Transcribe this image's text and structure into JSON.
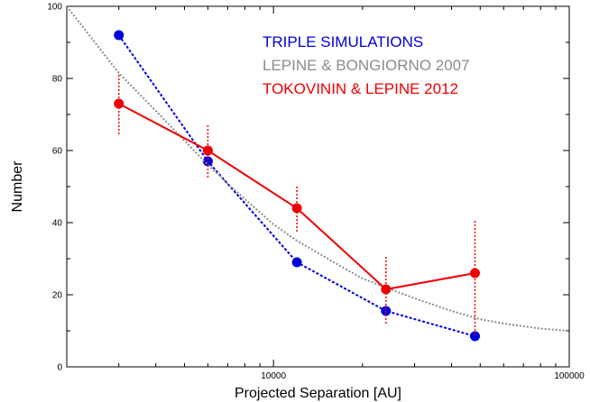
{
  "chart_data": {
    "type": "line",
    "title": "",
    "xlabel": "Projected Separation [AU]",
    "ylabel": "Number",
    "xscale": "log",
    "xlim": [
      2000,
      100000
    ],
    "ylim": [
      0,
      100
    ],
    "x_tick_labels": [
      {
        "value": 10000,
        "label": "10000"
      },
      {
        "value": 100000,
        "label": "100000"
      }
    ],
    "y_tick_labels": [
      {
        "value": 0,
        "label": "0"
      },
      {
        "value": 20,
        "label": "20"
      },
      {
        "value": 40,
        "label": "40"
      },
      {
        "value": 60,
        "label": "60"
      },
      {
        "value": 80,
        "label": "80"
      },
      {
        "value": 100,
        "label": "100"
      }
    ],
    "grid": false,
    "legend_position": "top-right",
    "series": [
      {
        "name": "TRIPLE SIMULATIONS",
        "color": "#0000dd",
        "style": "dashed-markers",
        "x": [
          3000,
          6000,
          12000,
          24000,
          48000
        ],
        "y": [
          92,
          57,
          29,
          15.5,
          8.5
        ]
      },
      {
        "name": "LEPINE & BONGIORNO 2007",
        "color": "#8c8c8c",
        "style": "dotted-curve",
        "x": [
          2000,
          3000,
          4000,
          6000,
          8000,
          10000,
          12000,
          16000,
          20000,
          24000,
          30000,
          40000,
          50000,
          60000,
          80000,
          100000
        ],
        "y": [
          100,
          81.5,
          71,
          56,
          46.5,
          39.5,
          35,
          29,
          24.5,
          22,
          19,
          15.5,
          13.2,
          12,
          10.6,
          10
        ]
      },
      {
        "name": "TOKOVININ & LEPINE 2012",
        "color": "#ee0000",
        "style": "solid-markers-errorbars",
        "x": [
          3000,
          6000,
          12000,
          24000,
          48000
        ],
        "y": [
          73,
          60,
          44,
          21.5,
          26
        ],
        "yerr_low": [
          64.5,
          52.5,
          37.5,
          12,
          9
        ],
        "yerr_high": [
          81.5,
          67.5,
          50.5,
          31,
          41
        ]
      }
    ]
  }
}
